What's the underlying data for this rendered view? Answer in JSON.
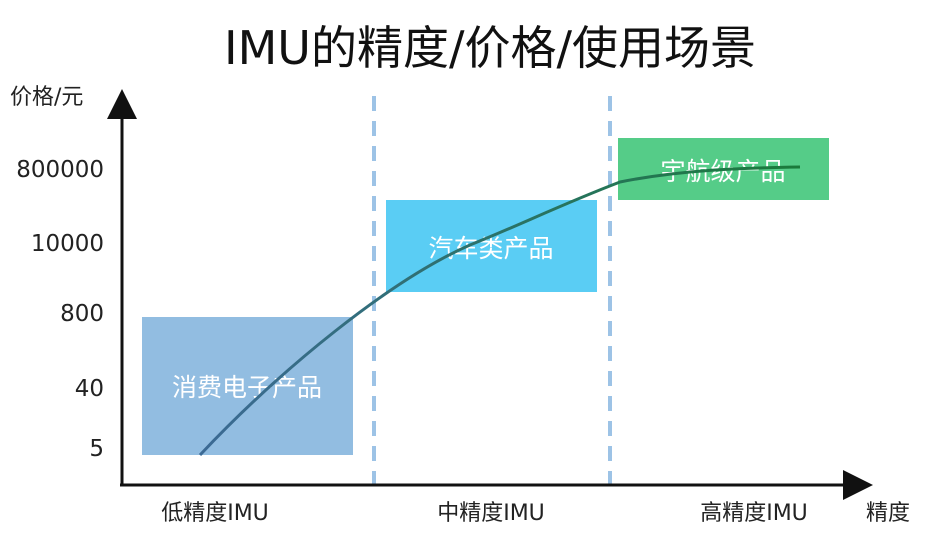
{
  "title": "IMU的精度/价格/使用场景",
  "y_axis_label": "价格/元",
  "x_axis_label": "精度",
  "y_ticks": [
    "800000",
    "10000",
    "800",
    "40",
    "5"
  ],
  "x_categories": [
    "低精度IMU",
    "中精度IMU",
    "高精度IMU"
  ],
  "regions": [
    {
      "label": "消费电子产品",
      "color": "#92bde1"
    },
    {
      "label": "汽车类产品",
      "color": "#5acdf4"
    },
    {
      "label": "宇航级产品",
      "color": "#55cc88"
    }
  ],
  "colors": {
    "axis": "#111111",
    "divider": "#9dc3e6",
    "curve_start": "#3c6a95",
    "curve_end": "#1a7a3a"
  }
}
